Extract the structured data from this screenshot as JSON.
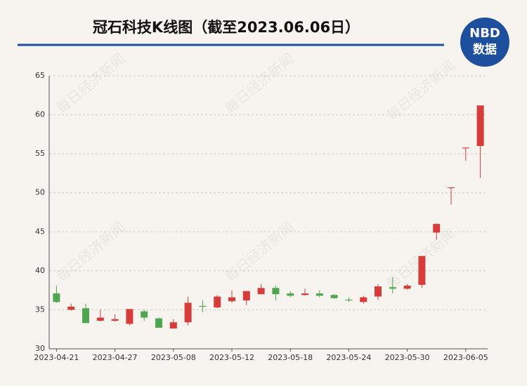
{
  "chart_data": {
    "type": "candlestick",
    "title": "冠石科技K线图（截至2023.06.06日）",
    "logo": {
      "top": "NBD",
      "bottom": "数据"
    },
    "watermark": "每日经济新闻",
    "categories": [
      "2023-04-21",
      null,
      null,
      null,
      "2023-04-27",
      null,
      null,
      null,
      "2023-05-08",
      null,
      null,
      null,
      "2023-05-12",
      null,
      null,
      null,
      "2023-05-18",
      null,
      null,
      null,
      "2023-05-24",
      null,
      null,
      null,
      "2023-05-30",
      null,
      null,
      null,
      "2023-06-05",
      null
    ],
    "open": [
      37.1,
      35.0,
      35.2,
      33.6,
      33.6,
      33.2,
      34.8,
      33.9,
      32.6,
      33.4,
      35.5,
      35.3,
      36.1,
      36.2,
      37.0,
      37.8,
      37.1,
      36.9,
      37.1,
      36.9,
      36.3,
      36.0,
      36.7,
      37.9,
      37.7,
      38.2,
      44.9,
      50.6,
      55.7,
      56.0
    ],
    "high": [
      38.1,
      35.8,
      35.8,
      35.0,
      34.4,
      35.1,
      35.0,
      34.0,
      33.8,
      36.7,
      36.2,
      36.9,
      37.5,
      37.4,
      38.3,
      38.1,
      37.4,
      37.7,
      37.5,
      37.0,
      36.6,
      36.8,
      38.3,
      39.2,
      38.3,
      41.9,
      46.1,
      50.7,
      55.8,
      61.2
    ],
    "low": [
      35.9,
      34.9,
      33.3,
      33.5,
      33.5,
      33.0,
      33.6,
      32.7,
      32.6,
      33.0,
      34.7,
      35.2,
      35.9,
      35.6,
      37.0,
      36.2,
      36.6,
      36.8,
      36.6,
      36.4,
      36.0,
      35.8,
      36.3,
      37.1,
      37.6,
      37.8,
      44.0,
      48.5,
      54.1,
      51.9
    ],
    "close": [
      36.0,
      35.4,
      33.3,
      34.0,
      33.8,
      35.1,
      34.0,
      32.7,
      33.4,
      35.9,
      35.4,
      36.7,
      36.6,
      37.4,
      37.8,
      37.0,
      36.8,
      37.1,
      36.8,
      36.5,
      36.2,
      36.6,
      38.0,
      37.7,
      38.1,
      41.9,
      46.0,
      50.7,
      55.8,
      61.2
    ],
    "up_color": "#d63c3a",
    "down_color": "#4ea64e",
    "ylim": [
      30,
      65
    ],
    "yticks": [
      30,
      35,
      40,
      45,
      50,
      55,
      60,
      65
    ],
    "grid": true
  }
}
